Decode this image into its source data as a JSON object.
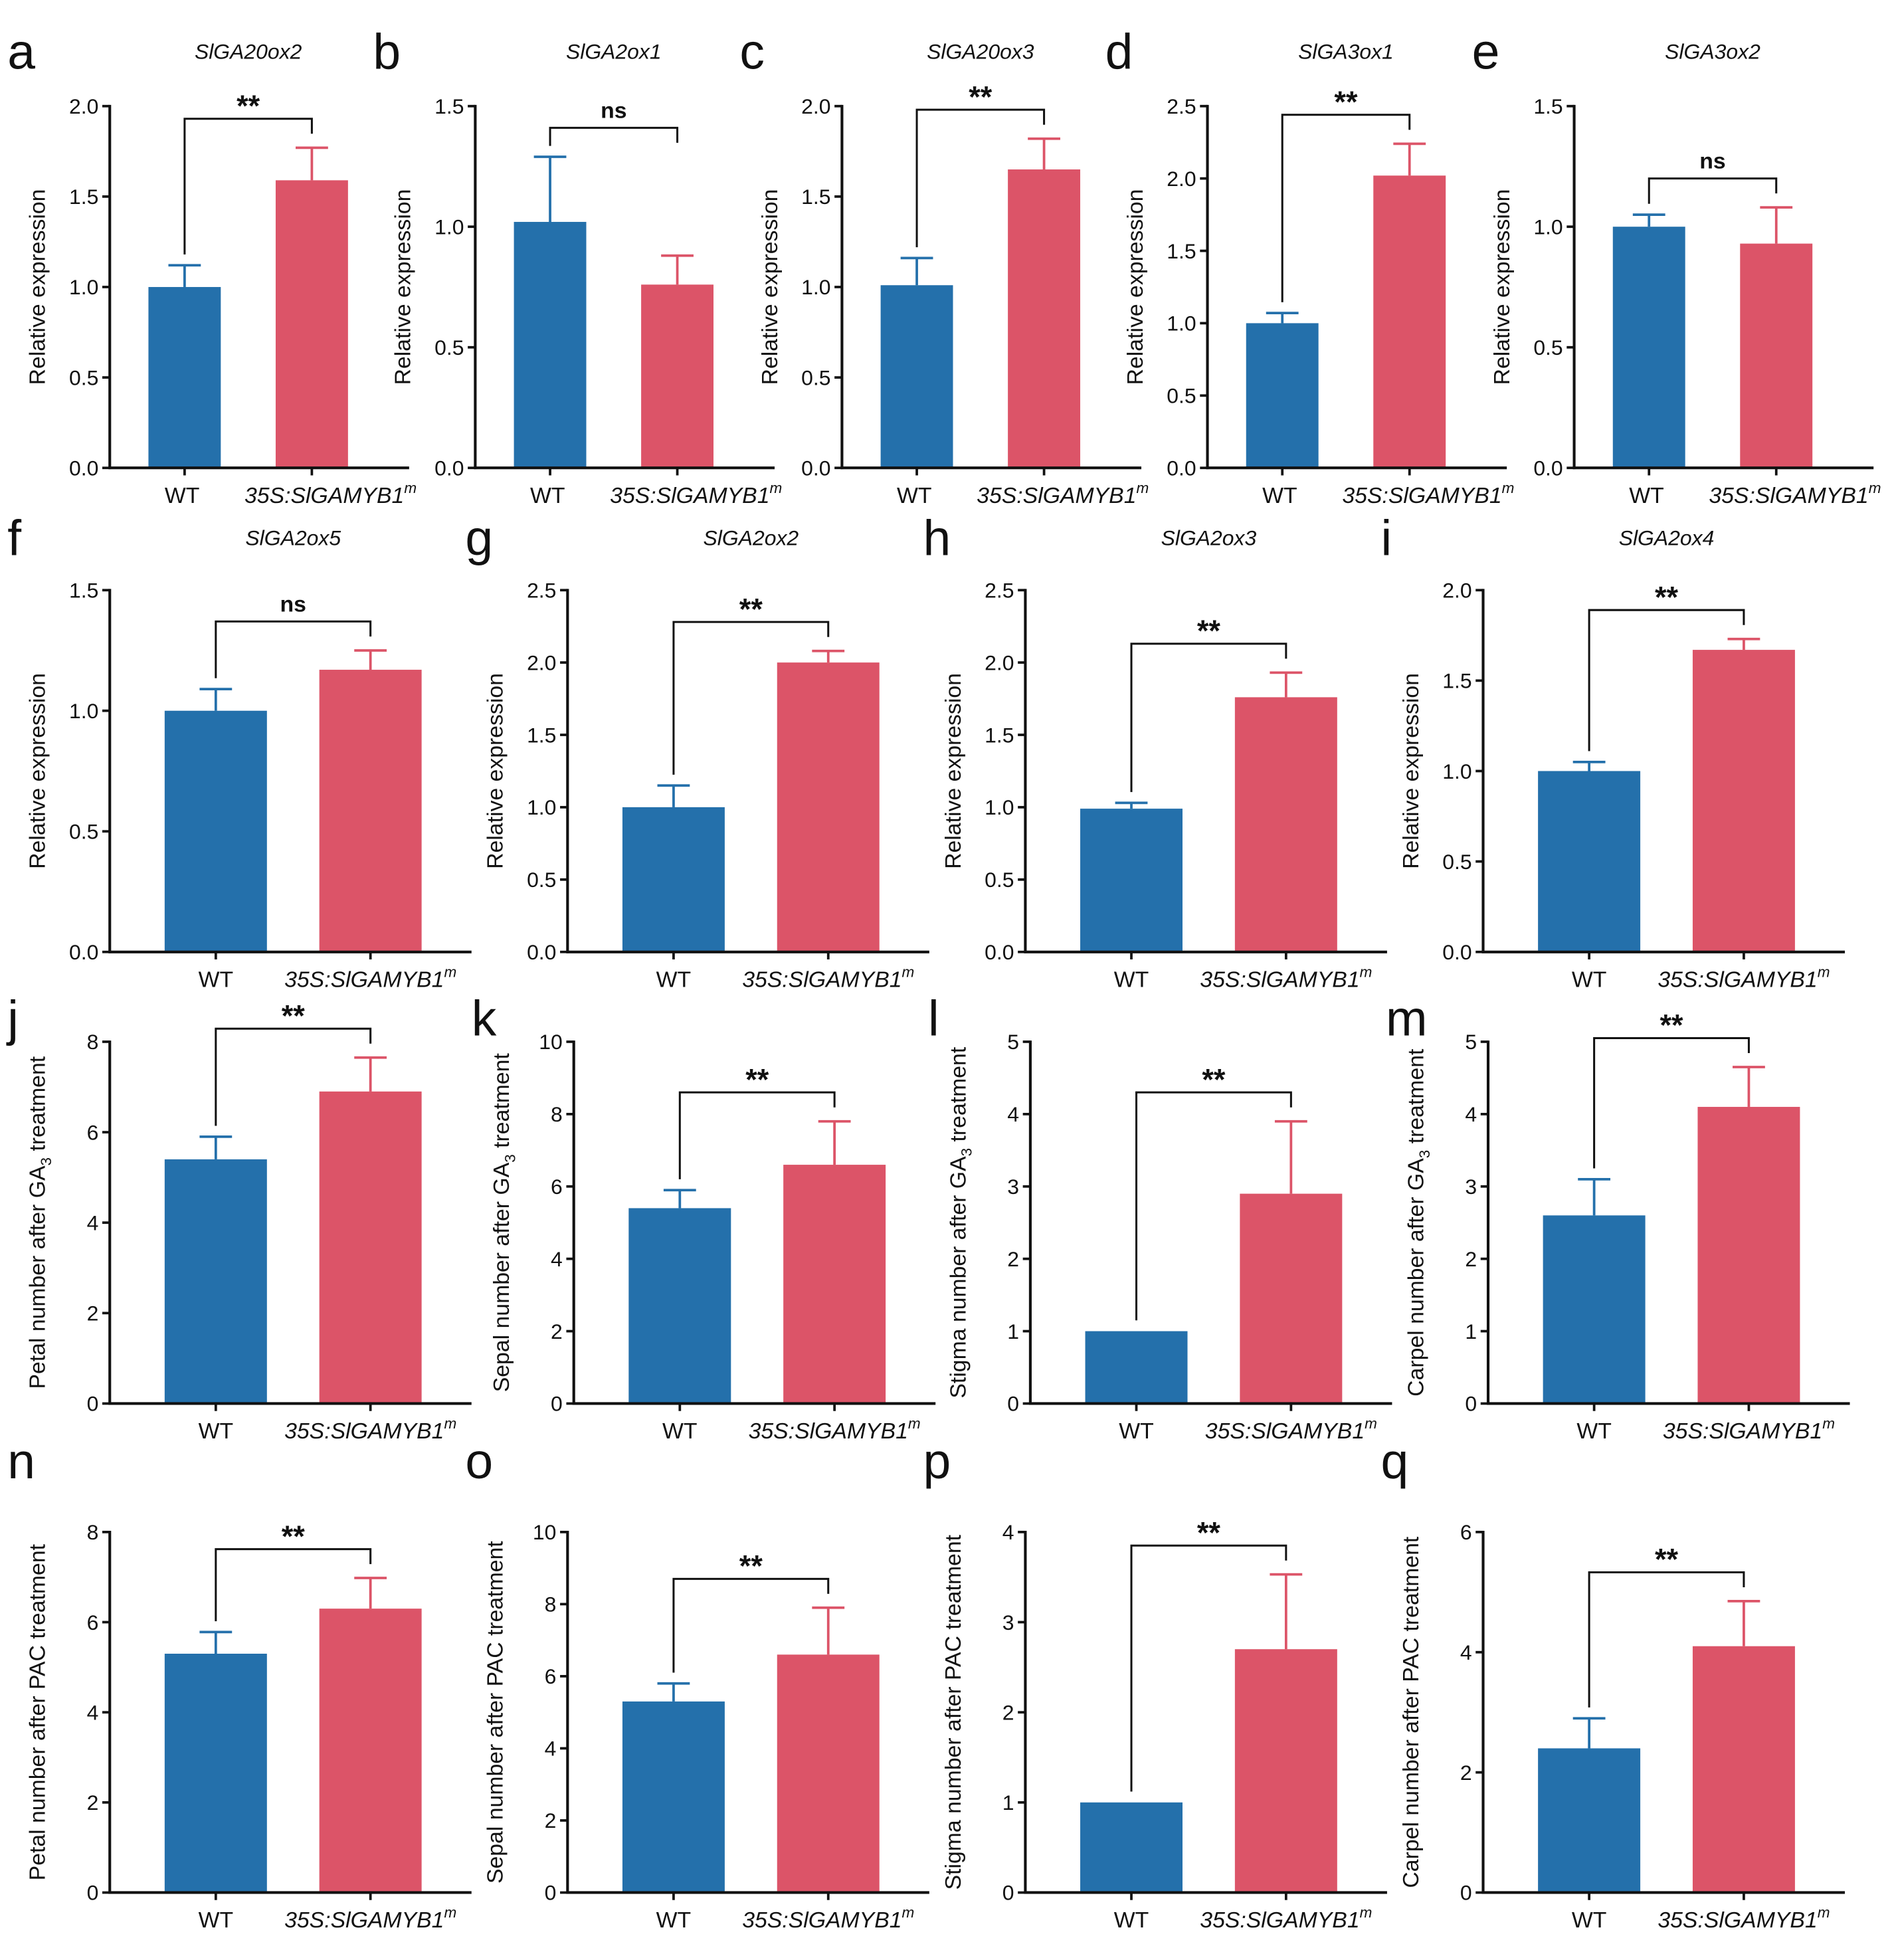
{
  "colors": {
    "wt": "#2470ab",
    "transgenic": "#dc5468",
    "axis": "#111111"
  },
  "chart_data": [
    {
      "panel": "a",
      "type": "bar",
      "title": "SlGA20ox2",
      "ylabel": "Relative expression",
      "ylim": [
        0,
        2.0
      ],
      "ystep": 0.5,
      "decimals": 1,
      "categories": [
        "WT",
        "35S:SlGAMYB1"
      ],
      "category_sup": [
        "",
        "m"
      ],
      "values": [
        1.0,
        1.59
      ],
      "errors": [
        0.12,
        0.18
      ],
      "significance": "**"
    },
    {
      "panel": "b",
      "type": "bar",
      "title": "SlGA2ox1",
      "ylabel": "Relative expression",
      "ylim": [
        0,
        1.5
      ],
      "ystep": 0.5,
      "decimals": 1,
      "categories": [
        "WT",
        "35S:SlGAMYB1"
      ],
      "category_sup": [
        "",
        "m"
      ],
      "values": [
        1.02,
        0.76
      ],
      "errors": [
        0.27,
        0.12
      ],
      "significance": "ns"
    },
    {
      "panel": "c",
      "type": "bar",
      "title": "SlGA20ox3",
      "ylabel": "Relative expression",
      "ylim": [
        0,
        2.0
      ],
      "ystep": 0.5,
      "decimals": 1,
      "categories": [
        "WT",
        "35S:SlGAMYB1"
      ],
      "category_sup": [
        "",
        "m"
      ],
      "values": [
        1.01,
        1.65
      ],
      "errors": [
        0.15,
        0.17
      ],
      "significance": "**"
    },
    {
      "panel": "d",
      "type": "bar",
      "title": "SlGA3ox1",
      "ylabel": "Relative expression",
      "ylim": [
        0,
        2.5
      ],
      "ystep": 0.5,
      "decimals": 1,
      "categories": [
        "WT",
        "35S:SlGAMYB1"
      ],
      "category_sup": [
        "",
        "m"
      ],
      "values": [
        1.0,
        2.02
      ],
      "errors": [
        0.07,
        0.22
      ],
      "significance": "**"
    },
    {
      "panel": "e",
      "type": "bar",
      "title": "SlGA3ox2",
      "ylabel": "Relative expression",
      "ylim": [
        0,
        1.5
      ],
      "ystep": 0.5,
      "decimals": 1,
      "categories": [
        "WT",
        "35S:SlGAMYB1"
      ],
      "category_sup": [
        "",
        "m"
      ],
      "values": [
        1.0,
        0.93
      ],
      "errors": [
        0.05,
        0.15
      ],
      "significance": "ns"
    },
    {
      "panel": "f",
      "type": "bar",
      "title": "SlGA2ox5",
      "ylabel": "Relative expression",
      "ylim": [
        0,
        1.5
      ],
      "ystep": 0.5,
      "decimals": 1,
      "categories": [
        "WT",
        "35S:SlGAMYB1"
      ],
      "category_sup": [
        "",
        "m"
      ],
      "values": [
        1.0,
        1.17
      ],
      "errors": [
        0.09,
        0.08
      ],
      "significance": "ns"
    },
    {
      "panel": "g",
      "type": "bar",
      "title": "SlGA2ox2",
      "ylabel": "Relative expression",
      "ylim": [
        0,
        2.5
      ],
      "ystep": 0.5,
      "decimals": 1,
      "categories": [
        "WT",
        "35S:SlGAMYB1"
      ],
      "category_sup": [
        "",
        "m"
      ],
      "values": [
        1.0,
        2.0
      ],
      "errors": [
        0.15,
        0.08
      ],
      "significance": "**"
    },
    {
      "panel": "h",
      "type": "bar",
      "title": "SlGA2ox3",
      "ylabel": "Relative expression",
      "ylim": [
        0,
        2.5
      ],
      "ystep": 0.5,
      "decimals": 1,
      "categories": [
        "WT",
        "35S:SlGAMYB1"
      ],
      "category_sup": [
        "",
        "m"
      ],
      "values": [
        0.99,
        1.76
      ],
      "errors": [
        0.04,
        0.17
      ],
      "significance": "**"
    },
    {
      "panel": "i",
      "type": "bar",
      "title": "SlGA2ox4",
      "ylabel": "Relative expression",
      "ylim": [
        0,
        2.0
      ],
      "ystep": 0.5,
      "decimals": 1,
      "categories": [
        "WT",
        "35S:SlGAMYB1"
      ],
      "category_sup": [
        "",
        "m"
      ],
      "values": [
        1.0,
        1.67
      ],
      "errors": [
        0.05,
        0.06
      ],
      "significance": "**"
    },
    {
      "panel": "j",
      "type": "bar",
      "title": "",
      "ylabel": "Petal number after GA3 treatment",
      "ylim": [
        0,
        8
      ],
      "ystep": 2,
      "decimals": 0,
      "categories": [
        "WT",
        "35S:SlGAMYB1"
      ],
      "category_sup": [
        "",
        "m"
      ],
      "values": [
        5.4,
        6.9
      ],
      "errors": [
        0.5,
        0.75
      ],
      "significance": "**"
    },
    {
      "panel": "k",
      "type": "bar",
      "title": "",
      "ylabel": "Sepal number after GA3 treatment",
      "ylim": [
        0,
        10
      ],
      "ystep": 2,
      "decimals": 0,
      "categories": [
        "WT",
        "35S:SlGAMYB1"
      ],
      "category_sup": [
        "",
        "m"
      ],
      "values": [
        5.4,
        6.6
      ],
      "errors": [
        0.5,
        1.2
      ],
      "significance": "**"
    },
    {
      "panel": "l",
      "type": "bar",
      "title": "",
      "ylabel": "Stigma number after GA3 treatment",
      "ylim": [
        0,
        5
      ],
      "ystep": 1,
      "decimals": 0,
      "categories": [
        "WT",
        "35S:SlGAMYB1"
      ],
      "category_sup": [
        "",
        "m"
      ],
      "values": [
        1.0,
        2.9
      ],
      "errors": [
        0,
        1.0
      ],
      "significance": "**"
    },
    {
      "panel": "m",
      "type": "bar",
      "title": "",
      "ylabel": "Carpel number after GA3 treatment",
      "ylim": [
        0,
        5
      ],
      "ystep": 1,
      "decimals": 0,
      "categories": [
        "WT",
        "35S:SlGAMYB1"
      ],
      "category_sup": [
        "",
        "m"
      ],
      "values": [
        2.6,
        4.1
      ],
      "errors": [
        0.5,
        0.55
      ],
      "significance": "**"
    },
    {
      "panel": "n",
      "type": "bar",
      "title": "",
      "ylabel": "Petal number after PAC treatment",
      "ylim": [
        0,
        8
      ],
      "ystep": 2,
      "decimals": 0,
      "categories": [
        "WT",
        "35S:SlGAMYB1"
      ],
      "category_sup": [
        "",
        "m"
      ],
      "values": [
        5.3,
        6.3
      ],
      "errors": [
        0.48,
        0.68
      ],
      "significance": "**"
    },
    {
      "panel": "o",
      "type": "bar",
      "title": "",
      "ylabel": "Sepal number after PAC treatment",
      "ylim": [
        0,
        10
      ],
      "ystep": 2,
      "decimals": 0,
      "categories": [
        "WT",
        "35S:SlGAMYB1"
      ],
      "category_sup": [
        "",
        "m"
      ],
      "values": [
        5.3,
        6.6
      ],
      "errors": [
        0.5,
        1.3
      ],
      "significance": "**"
    },
    {
      "panel": "p",
      "type": "bar",
      "title": "",
      "ylabel": "Stigma number after PAC treatment",
      "ylim": [
        0,
        4
      ],
      "ystep": 1,
      "decimals": 0,
      "categories": [
        "WT",
        "35S:SlGAMYB1"
      ],
      "category_sup": [
        "",
        "m"
      ],
      "values": [
        1.0,
        2.7
      ],
      "errors": [
        0,
        0.83
      ],
      "significance": "**"
    },
    {
      "panel": "q",
      "type": "bar",
      "title": "",
      "ylabel": "Carpel number after PAC treatment",
      "ylim": [
        0,
        6
      ],
      "ystep": 2,
      "decimals": 0,
      "categories": [
        "WT",
        "35S:SlGAMYB1"
      ],
      "category_sup": [
        "",
        "m"
      ],
      "values": [
        2.4,
        4.1
      ],
      "errors": [
        0.5,
        0.75
      ],
      "significance": "**"
    }
  ]
}
